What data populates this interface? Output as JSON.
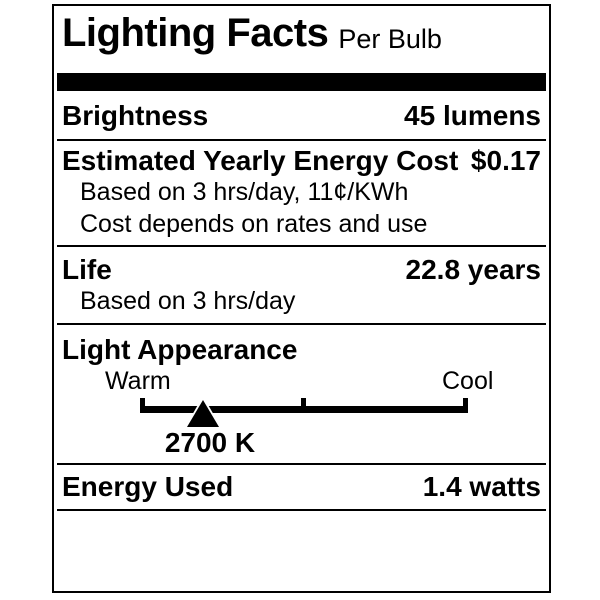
{
  "label": {
    "title": "Lighting Facts",
    "per_unit": "Per Bulb",
    "brightness": {
      "label": "Brightness",
      "value": "45 lumens"
    },
    "energy_cost": {
      "label": "Estimated Yearly Energy Cost",
      "value": "$0.17",
      "note_1": "Based on 3 hrs/day, 11¢/KWh",
      "note_2": "Cost depends on rates and use"
    },
    "life": {
      "label": "Life",
      "value": "22.8 years",
      "note": "Based on 3 hrs/day"
    },
    "light_appearance": {
      "label": "Light Appearance",
      "scale_left": "Warm",
      "scale_right": "Cool",
      "marker_value": "2700 K"
    },
    "energy_used": {
      "label": "Energy Used",
      "value": "1.4 watts"
    },
    "colors": {
      "ink": "#000000",
      "background": "#ffffff"
    }
  }
}
